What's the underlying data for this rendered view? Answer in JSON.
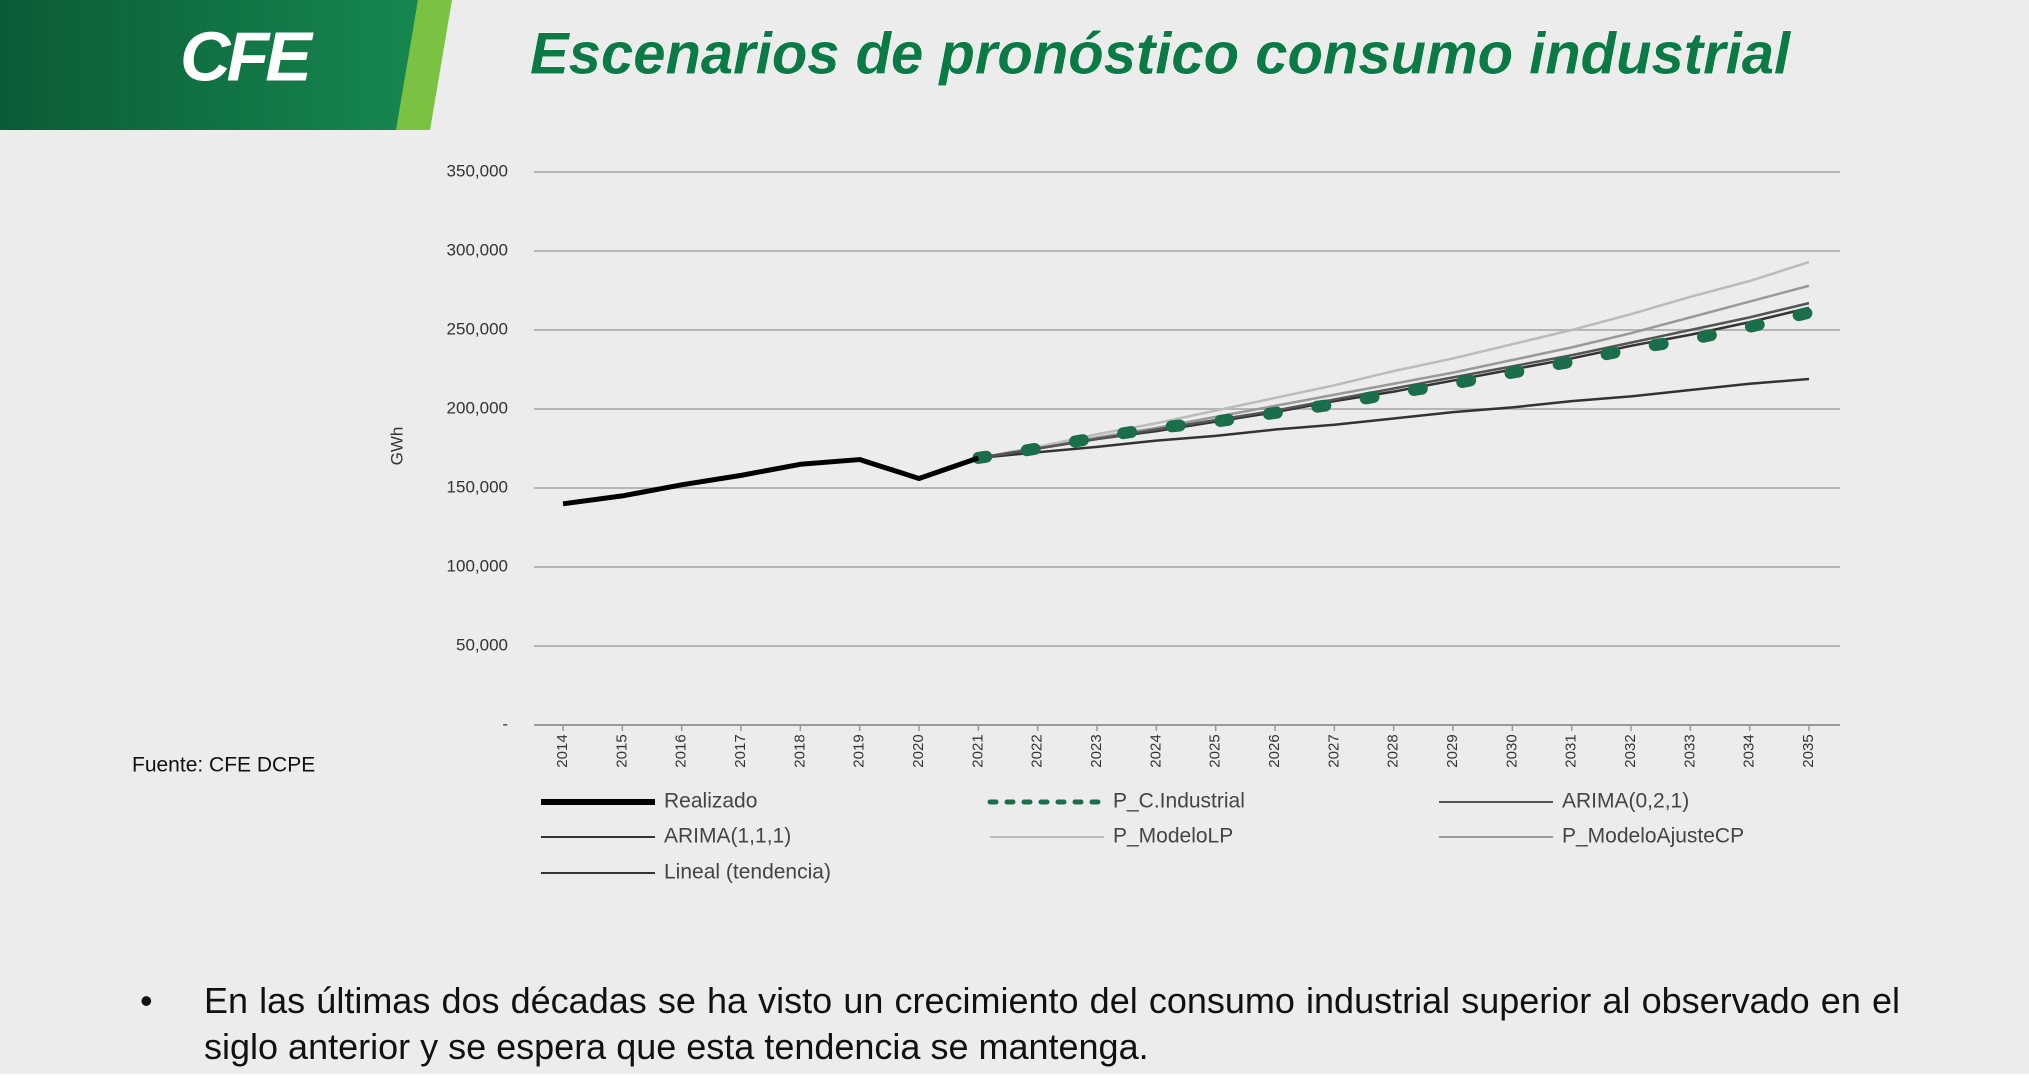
{
  "header": {
    "logo": "CFE",
    "title": "Escenarios de pronóstico consumo industrial"
  },
  "chart_data": {
    "type": "line",
    "y_label": "GWh",
    "categories": [
      "2014",
      "2015",
      "2016",
      "2017",
      "2018",
      "2019",
      "2020",
      "2021",
      "2022",
      "2023",
      "2024",
      "2025",
      "2026",
      "2027",
      "2028",
      "2029",
      "2030",
      "2031",
      "2032",
      "2033",
      "2034",
      "2035"
    ],
    "ylim": [
      0,
      350000
    ],
    "yticks": [
      {
        "value": 0,
        "label": "-"
      },
      {
        "value": 50000,
        "label": "50,000"
      },
      {
        "value": 100000,
        "label": "100,000"
      },
      {
        "value": 150000,
        "label": "150,000"
      },
      {
        "value": 200000,
        "label": "200,000"
      },
      {
        "value": 250000,
        "label": "250,000"
      },
      {
        "value": 300000,
        "label": "300,000"
      },
      {
        "value": 350000,
        "label": "350,000"
      }
    ],
    "grid": true,
    "legend": "bottom",
    "series": [
      {
        "name": "Realizado",
        "color": "#000000",
        "style": "solid",
        "weight": "heavy",
        "values": [
          140000,
          145000,
          152000,
          158000,
          165000,
          168000,
          156000,
          169000,
          null,
          null,
          null,
          null,
          null,
          null,
          null,
          null,
          null,
          null,
          null,
          null,
          null,
          null
        ]
      },
      {
        "name": "P_C.Industrial",
        "color": "#1a6e4a",
        "style": "dotted",
        "weight": "heavy",
        "values": [
          null,
          null,
          null,
          null,
          null,
          null,
          null,
          169000,
          175000,
          182000,
          188000,
          192000,
          197500,
          203000,
          210000,
          216000,
          223000,
          230000,
          238000,
          244000,
          252000,
          261000
        ]
      },
      {
        "name": "ARIMA(0,2,1)",
        "color": "#555555",
        "style": "solid",
        "weight": "normal",
        "values": [
          null,
          null,
          null,
          null,
          null,
          null,
          null,
          169000,
          175000,
          181000,
          187000,
          193000,
          199000,
          206000,
          213000,
          220000,
          227000,
          234000,
          242000,
          250000,
          258000,
          267000
        ]
      },
      {
        "name": "ARIMA(1,1,1)",
        "color": "#333333",
        "style": "solid",
        "weight": "normal",
        "values": [
          null,
          null,
          null,
          null,
          null,
          null,
          null,
          169000,
          175000,
          181000,
          186000,
          192000,
          198000,
          205000,
          211000,
          218000,
          225000,
          232000,
          240000,
          247000,
          255000,
          264000
        ]
      },
      {
        "name": "P_ModeloLP",
        "color": "#bbbbbb",
        "style": "solid",
        "weight": "normal",
        "values": [
          null,
          null,
          null,
          null,
          null,
          null,
          null,
          169000,
          176000,
          184000,
          191000,
          199000,
          207000,
          215000,
          224000,
          232000,
          241000,
          250000,
          260000,
          271000,
          281000,
          293000
        ]
      },
      {
        "name": "P_ModeloAjusteCP",
        "color": "#999999",
        "style": "solid",
        "weight": "normal",
        "values": [
          null,
          null,
          null,
          null,
          null,
          null,
          null,
          169000,
          175000,
          182000,
          188000,
          195000,
          202000,
          209000,
          216000,
          223000,
          231000,
          239000,
          248000,
          258000,
          268000,
          278000
        ]
      },
      {
        "name": "Lineal (tendencia)",
        "color": "#333333",
        "style": "solid",
        "weight": "normal",
        "values": [
          null,
          null,
          null,
          null,
          null,
          null,
          null,
          169000,
          172600,
          176000,
          180000,
          183000,
          187000,
          190000,
          194000,
          198000,
          201000,
          205000,
          208000,
          212000,
          216000,
          219000
        ]
      }
    ]
  },
  "source": "Fuente: CFE DCPE",
  "bullet": "En las últimas dos décadas se ha visto un crecimiento del consumo industrial superior al observado en el siglo anterior y se espera que esta tendencia se mantenga."
}
